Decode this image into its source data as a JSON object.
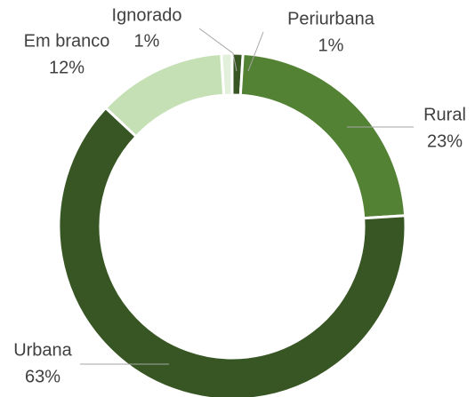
{
  "chart_data": {
    "type": "donut",
    "categories": [
      "Periurbana",
      "Rural",
      "Urbana",
      "Em branco",
      "Ignorado"
    ],
    "values": [
      1,
      23,
      63,
      12,
      1
    ],
    "value_labels": [
      "1%",
      "23%",
      "63%",
      "12%",
      "1%"
    ],
    "colors": [
      "#375623",
      "#548235",
      "#375623",
      "#c5e0b4",
      "#e2efda"
    ]
  }
}
